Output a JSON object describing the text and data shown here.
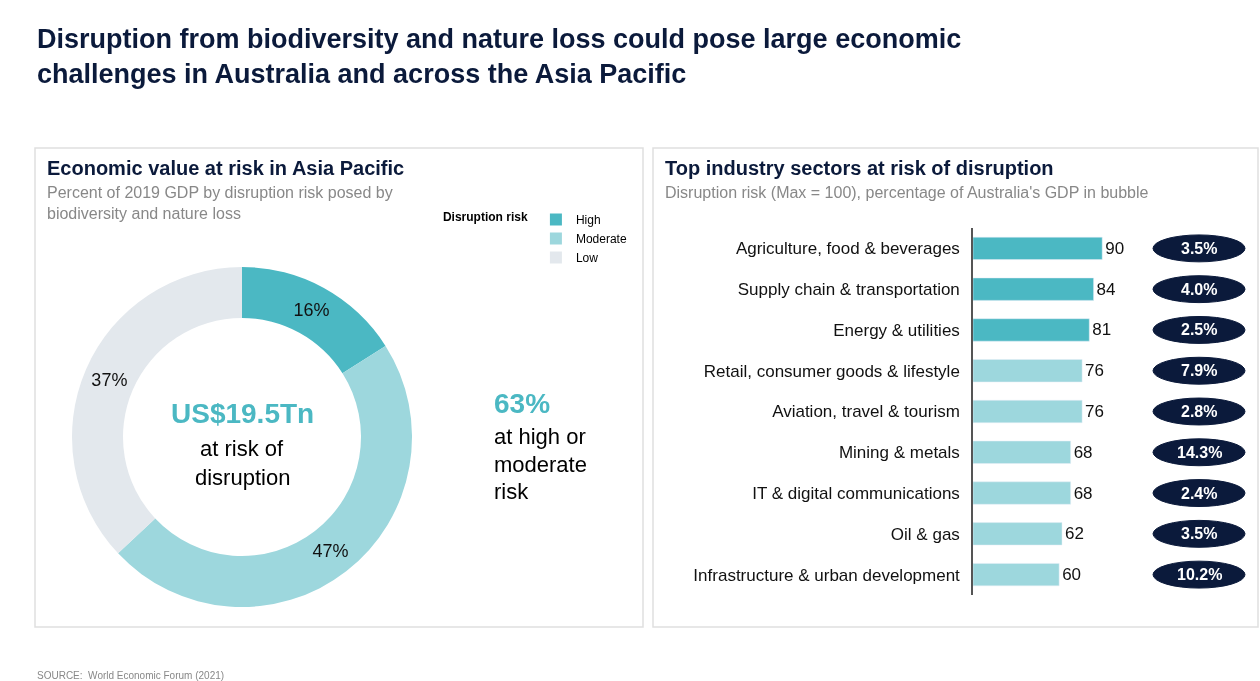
{
  "chart_data": [
    {
      "type": "other",
      "title": "Disruption from biodiversity and nature loss could pose large economic challenges in Australia and across the Asia Pacific",
      "annotations": [
        "SOURCE:  World Economic Forum (2021)"
      ]
    },
    {
      "type": "donut",
      "title": "Economic value at risk in Asia Pacific",
      "subtitle": "Percent of 2019 GDP by disruption risk posed by biodiversity and nature loss",
      "legend_title": "Disruption risk",
      "legend": "top right",
      "categories": [
        "High",
        "Moderate",
        "Low"
      ],
      "values": [
        16,
        47,
        37
      ],
      "colors": [
        "#4bb8c3",
        "#9dd7dd",
        "#e3e8ed"
      ],
      "value_labels": [
        "16%",
        "47%",
        "37%"
      ],
      "annotations": [
        "US$19.5Tn",
        "at risk of",
        "disruption",
        "63%",
        "at high or",
        "moderate",
        "risk"
      ]
    },
    {
      "type": "bar",
      "orientation": "horizontal",
      "title": "Top industry sectors at risk of disruption",
      "subtitle": "Disruption risk (Max = 100), percentage of Australia's GDP in bubble",
      "categories": [
        "Agriculture, food & beverages",
        "Supply chain & transportation",
        "Energy & utilities",
        "Retail, consumer goods & lifestyle",
        "Aviation, travel & tourism",
        "Mining & metals",
        "IT & digital communications",
        "Oil & gas",
        "Infrastructure & urban development"
      ],
      "values": [
        90,
        84,
        81,
        76,
        76,
        68,
        68,
        62,
        60
      ],
      "colors": [
        "#4bb8c3",
        "#4bb8c3",
        "#4bb8c3",
        "#9dd7dd",
        "#9dd7dd",
        "#9dd7dd",
        "#9dd7dd",
        "#9dd7dd",
        "#9dd7dd"
      ],
      "tick_labels": "y",
      "data_labels": true,
      "annotations": [
        "3.5%",
        "4.0%",
        "2.5%",
        "7.9%",
        "2.8%",
        "14.3%",
        "2.4%",
        "3.5%",
        "10.2%"
      ]
    }
  ]
}
